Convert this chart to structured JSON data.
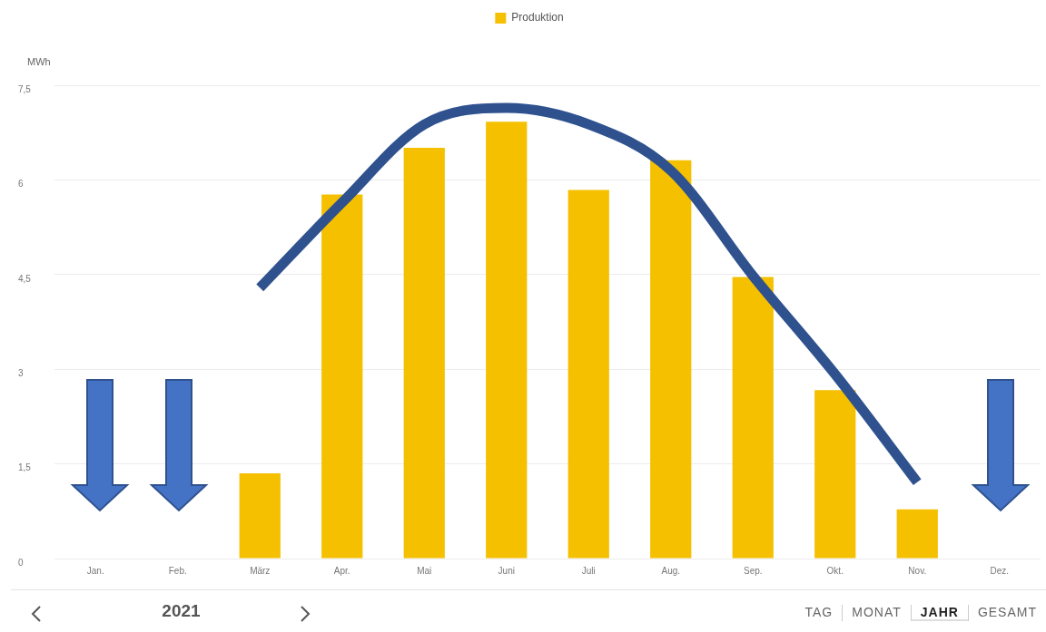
{
  "chart_data": {
    "type": "bar",
    "ylabel": "MWh",
    "categories": [
      "Jan.",
      "Feb.",
      "März",
      "Apr.",
      "Mai",
      "Juni",
      "Juli",
      "Aug.",
      "Sep.",
      "Okt.",
      "Nov.",
      "Dez."
    ],
    "series": [
      {
        "name": "Produktion",
        "color": "#f5c000",
        "values": [
          null,
          null,
          1.35,
          5.77,
          6.51,
          6.92,
          5.84,
          6.31,
          4.46,
          2.67,
          0.78,
          null
        ]
      },
      {
        "type": "line",
        "color": "#2f528f",
        "values": [
          null,
          null,
          4.29,
          5.64,
          6.88,
          7.14,
          6.88,
          6.15,
          4.48,
          2.92,
          1.21,
          null
        ]
      }
    ],
    "marker": "none",
    "ylim": [
      0,
      7.5
    ],
    "yticks": [
      0,
      {
        "value": 1.5,
        "label": "1,5"
      },
      3,
      {
        "value": 4.5,
        "label": "4,5"
      },
      6,
      {
        "value": 7.5,
        "label": "7,5"
      }
    ],
    "grid": "y",
    "legend": "top",
    "annotations": [
      "2021",
      "TAG",
      "MONAT",
      "JAHR",
      "GESAMT"
    ]
  }
}
